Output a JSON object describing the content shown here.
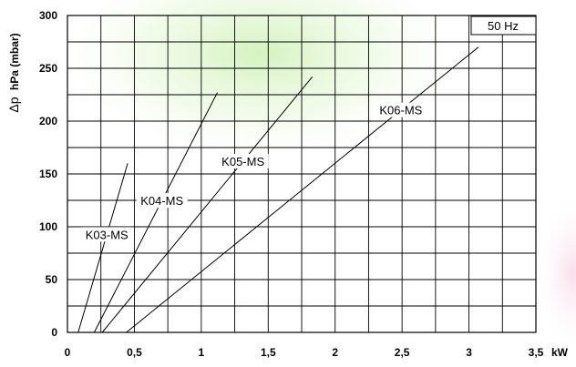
{
  "chart_data": {
    "type": "line",
    "title": "",
    "xlabel": "kW",
    "ylabel": "hPa (mbar)",
    "ylabel_symbol": "Δp",
    "legend_box": "50 Hz",
    "xlim": [
      0,
      3.5
    ],
    "ylim": [
      0,
      300
    ],
    "x_ticks": [
      0,
      0.5,
      1,
      1.5,
      2,
      2.5,
      3,
      3.5
    ],
    "x_tick_labels": [
      "0",
      "0,5",
      "1",
      "1,5",
      "2",
      "2,5",
      "3",
      "3,5"
    ],
    "y_ticks": [
      0,
      50,
      100,
      150,
      200,
      250,
      300
    ],
    "y_tick_labels": [
      "0",
      "50",
      "100",
      "150",
      "200",
      "250",
      "300"
    ],
    "grid_x_step": 0.25,
    "grid_y_step": 25,
    "grid": true,
    "series": [
      {
        "name": "K03-MS",
        "x": [
          0.08,
          0.45
        ],
        "y": [
          0,
          160
        ]
      },
      {
        "name": "K04-MS",
        "x": [
          0.2,
          1.12
        ],
        "y": [
          0,
          227
        ]
      },
      {
        "name": "K05-MS",
        "x": [
          0.26,
          1.83
        ],
        "y": [
          0,
          242
        ]
      },
      {
        "name": "K06-MS",
        "x": [
          0.44,
          3.07
        ],
        "y": [
          0,
          270
        ]
      }
    ]
  }
}
